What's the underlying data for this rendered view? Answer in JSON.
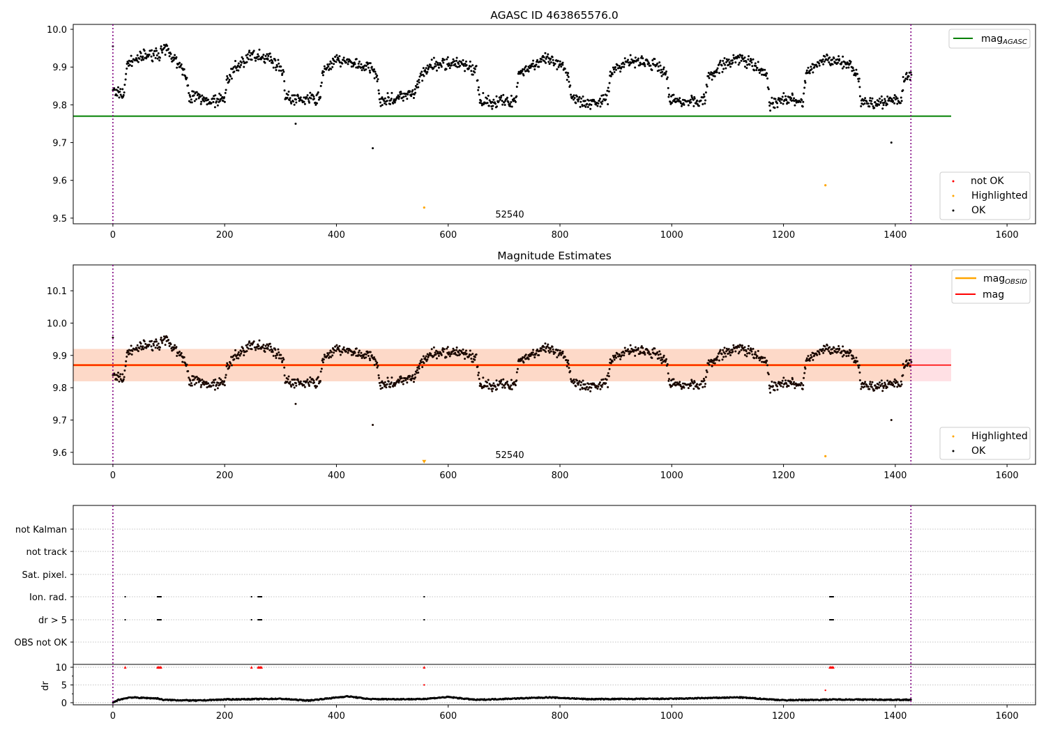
{
  "chart_data": [
    {
      "type": "scatter",
      "id": "agasc",
      "title": "AGASC ID 463865576.0",
      "xlim": [
        -71,
        1651
      ],
      "ylim": [
        9.485,
        10.013
      ],
      "xticks": [
        "0",
        "200",
        "400",
        "600",
        "800",
        "1000",
        "1200",
        "1400",
        "1600"
      ],
      "yticks": [
        "9.5",
        "9.6",
        "9.7",
        "9.8",
        "9.9",
        "10.0"
      ],
      "mag_agasc": 9.77,
      "mag_agasc_xrange": [
        -71,
        1500
      ],
      "obsid_boundaries": [
        0,
        1428
      ],
      "obsid_label": "52540",
      "obsid_label_position": [
        712,
        9.505
      ],
      "legend_line": {
        "label": "mag",
        "subscript": "AGASC",
        "color": "#008000"
      },
      "legend_points": [
        {
          "label": "not OK",
          "color": "#ff0000"
        },
        {
          "label": "Highlighted",
          "color": "#ffa500"
        },
        {
          "label": "OK",
          "color": "#000000"
        }
      ],
      "highlighted": [
        [
          557,
          9.528
        ],
        [
          1275,
          9.587
        ]
      ]
    },
    {
      "type": "scatter",
      "id": "estimates",
      "title": "Magnitude Estimates",
      "xlim": [
        -71,
        1651
      ],
      "ylim": [
        9.563,
        10.18
      ],
      "xticks": [
        "0",
        "200",
        "400",
        "600",
        "800",
        "1000",
        "1200",
        "1400",
        "1600"
      ],
      "yticks": [
        "9.6",
        "9.7",
        "9.8",
        "9.9",
        "10.0",
        "10.1"
      ],
      "mag": 9.87,
      "mag_range": [
        9.82,
        9.92
      ],
      "mag_xrange": [
        -71,
        1500
      ],
      "mag_obsid": 9.87,
      "mag_obsid_range": [
        9.82,
        9.92
      ],
      "mag_obsid_xrange": [
        -71,
        1428
      ],
      "obsid_label": "52540",
      "obsid_label_position": [
        712,
        9.59
      ],
      "legend_lines": [
        {
          "label": "mag",
          "subscript": "OBSID",
          "color": "#ffa500"
        },
        {
          "label": "mag",
          "subscript": "",
          "color": "#ff0000"
        }
      ],
      "legend_points": [
        {
          "label": "Highlighted",
          "color": "#ffa500"
        },
        {
          "label": "OK",
          "color": "#000000"
        }
      ],
      "highlighted": [
        [
          557,
          9.57
        ],
        [
          1275,
          9.588
        ]
      ]
    },
    {
      "type": "scatter",
      "id": "flags",
      "categories": [
        "not Kalman",
        "not track",
        "Sat. pixel.",
        "Ion. rad.",
        "dr > 5",
        "OBS not OK"
      ],
      "flagged": {
        "Ion. rad.": [
          22,
          80,
          82,
          84,
          86,
          248,
          260,
          262,
          264,
          266,
          557,
          1283,
          1285,
          1287,
          1289
        ],
        "dr > 5": [
          22,
          80,
          82,
          84,
          86,
          248,
          260,
          262,
          264,
          266,
          557,
          1283,
          1285,
          1287,
          1289
        ]
      }
    },
    {
      "type": "line",
      "id": "dr",
      "ylabel": "dr",
      "ylim": [
        -0.6,
        10.8
      ],
      "xticks": [
        "0",
        "200",
        "400",
        "600",
        "800",
        "1000",
        "1200",
        "1400",
        "1600"
      ],
      "yticks": [
        "0",
        "5",
        "10"
      ],
      "dr_profile": [
        [
          0,
          0
        ],
        [
          10,
          0.8
        ],
        [
          30,
          1.5
        ],
        [
          80,
          1.2
        ],
        [
          90,
          0.8
        ],
        [
          150,
          0.6
        ],
        [
          200,
          0.9
        ],
        [
          300,
          1.1
        ],
        [
          350,
          0.6
        ],
        [
          420,
          1.8
        ],
        [
          460,
          1.0
        ],
        [
          550,
          1.0
        ],
        [
          600,
          1.6
        ],
        [
          650,
          0.8
        ],
        [
          780,
          1.5
        ],
        [
          850,
          1.0
        ],
        [
          1000,
          1.1
        ],
        [
          1120,
          1.5
        ],
        [
          1200,
          0.7
        ],
        [
          1300,
          0.9
        ],
        [
          1428,
          0.8
        ]
      ],
      "dr_clipped_at_10": [
        22,
        80,
        82,
        84,
        86,
        248,
        260,
        262,
        264,
        266,
        557,
        1283,
        1285,
        1287,
        1289
      ],
      "dr_notok": [
        [
          557,
          5.0
        ],
        [
          1275,
          3.5
        ]
      ]
    }
  ],
  "light_curve": {
    "profile": [
      [
        0,
        9.835
      ],
      [
        10,
        9.83
      ],
      [
        20,
        9.83
      ],
      [
        25,
        9.91
      ],
      [
        40,
        9.92
      ],
      [
        60,
        9.93
      ],
      [
        80,
        9.935
      ],
      [
        95,
        9.945
      ],
      [
        110,
        9.925
      ],
      [
        120,
        9.9
      ],
      [
        130,
        9.885
      ],
      [
        135,
        9.825
      ],
      [
        160,
        9.815
      ],
      [
        185,
        9.81
      ],
      [
        200,
        9.82
      ],
      [
        205,
        9.87
      ],
      [
        220,
        9.9
      ],
      [
        240,
        9.925
      ],
      [
        260,
        9.93
      ],
      [
        280,
        9.925
      ],
      [
        295,
        9.905
      ],
      [
        305,
        9.89
      ],
      [
        308,
        9.82
      ],
      [
        330,
        9.815
      ],
      [
        350,
        9.815
      ],
      [
        370,
        9.815
      ],
      [
        375,
        9.89
      ],
      [
        400,
        9.92
      ],
      [
        420,
        9.915
      ],
      [
        440,
        9.905
      ],
      [
        460,
        9.895
      ],
      [
        472,
        9.885
      ],
      [
        478,
        9.81
      ],
      [
        500,
        9.815
      ],
      [
        520,
        9.825
      ],
      [
        540,
        9.83
      ],
      [
        550,
        9.875
      ],
      [
        570,
        9.905
      ],
      [
        600,
        9.91
      ],
      [
        630,
        9.905
      ],
      [
        650,
        9.89
      ],
      [
        655,
        9.82
      ],
      [
        680,
        9.805
      ],
      [
        700,
        9.81
      ],
      [
        720,
        9.81
      ],
      [
        725,
        9.88
      ],
      [
        750,
        9.905
      ],
      [
        775,
        9.92
      ],
      [
        800,
        9.905
      ],
      [
        815,
        9.88
      ],
      [
        820,
        9.82
      ],
      [
        850,
        9.805
      ],
      [
        870,
        9.805
      ],
      [
        885,
        9.82
      ],
      [
        890,
        9.885
      ],
      [
        920,
        9.915
      ],
      [
        950,
        9.915
      ],
      [
        975,
        9.9
      ],
      [
        990,
        9.885
      ],
      [
        995,
        9.815
      ],
      [
        1020,
        9.81
      ],
      [
        1050,
        9.81
      ],
      [
        1060,
        9.82
      ],
      [
        1065,
        9.875
      ],
      [
        1090,
        9.905
      ],
      [
        1120,
        9.925
      ],
      [
        1150,
        9.9
      ],
      [
        1170,
        9.88
      ],
      [
        1175,
        9.8
      ],
      [
        1200,
        9.815
      ],
      [
        1235,
        9.81
      ],
      [
        1240,
        9.88
      ],
      [
        1265,
        9.915
      ],
      [
        1290,
        9.92
      ],
      [
        1320,
        9.9
      ],
      [
        1335,
        9.87
      ],
      [
        1338,
        9.81
      ],
      [
        1370,
        9.805
      ],
      [
        1400,
        9.81
      ],
      [
        1410,
        9.805
      ],
      [
        1415,
        9.87
      ],
      [
        1428,
        9.875
      ]
    ],
    "scatter": 0.015,
    "outliers": [
      [
        0,
        9.955
      ],
      [
        327,
        9.75
      ],
      [
        465,
        9.685
      ],
      [
        1393,
        9.7
      ]
    ]
  }
}
